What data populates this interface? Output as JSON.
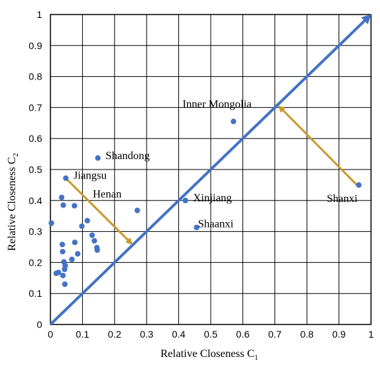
{
  "chart_data": {
    "type": "scatter",
    "title": "",
    "xlabel": "Relative Closeness C",
    "xlabel_sub": "1",
    "ylabel": "Relative Closeness C",
    "ylabel_sub": "2",
    "xlim": [
      0,
      1
    ],
    "ylim": [
      0,
      1
    ],
    "xticks": [
      "0",
      "0.1",
      "0.2",
      "0.3",
      "0.4",
      "0.5",
      "0.6",
      "0.7",
      "0.8",
      "0.9",
      "1"
    ],
    "yticks": [
      "0",
      "0.1",
      "0.2",
      "0.3",
      "0.4",
      "0.5",
      "0.6",
      "0.7",
      "0.8",
      "0.9",
      "1"
    ],
    "grid": true,
    "point_color": "#4472C4",
    "diagonal_color": "#4472C4",
    "arrow_color": "#C99A2E",
    "points": [
      {
        "x": 0.003,
        "y": 0.327
      },
      {
        "x": 0.018,
        "y": 0.165
      },
      {
        "x": 0.025,
        "y": 0.168
      },
      {
        "x": 0.035,
        "y": 0.41
      },
      {
        "x": 0.037,
        "y": 0.258
      },
      {
        "x": 0.038,
        "y": 0.235
      },
      {
        "x": 0.039,
        "y": 0.158
      },
      {
        "x": 0.04,
        "y": 0.385
      },
      {
        "x": 0.042,
        "y": 0.202
      },
      {
        "x": 0.044,
        "y": 0.178
      },
      {
        "x": 0.046,
        "y": 0.19
      },
      {
        "x": 0.045,
        "y": 0.13
      },
      {
        "x": 0.048,
        "y": 0.472
      },
      {
        "x": 0.067,
        "y": 0.21
      },
      {
        "x": 0.075,
        "y": 0.383
      },
      {
        "x": 0.076,
        "y": 0.265
      },
      {
        "x": 0.085,
        "y": 0.228
      },
      {
        "x": 0.098,
        "y": 0.317
      },
      {
        "x": 0.115,
        "y": 0.335
      },
      {
        "x": 0.13,
        "y": 0.288
      },
      {
        "x": 0.137,
        "y": 0.27
      },
      {
        "x": 0.145,
        "y": 0.248
      },
      {
        "x": 0.146,
        "y": 0.24
      },
      {
        "x": 0.148,
        "y": 0.537
      },
      {
        "x": 0.271,
        "y": 0.368
      },
      {
        "x": 0.421,
        "y": 0.4
      },
      {
        "x": 0.456,
        "y": 0.313
      },
      {
        "x": 0.571,
        "y": 0.655
      },
      {
        "x": 0.962,
        "y": 0.45
      }
    ],
    "annotations": [
      {
        "text": "Inner Mongolia",
        "x": 0.412,
        "y": 0.7
      },
      {
        "text": "Shandong",
        "x": 0.172,
        "y": 0.534
      },
      {
        "text": "Jiangsu",
        "x": 0.072,
        "y": 0.47
      },
      {
        "text": "Henan",
        "x": 0.132,
        "y": 0.41
      },
      {
        "text": "Xinjiang",
        "x": 0.445,
        "y": 0.397
      },
      {
        "text": "Shaanxi",
        "x": 0.46,
        "y": 0.314
      },
      {
        "text": "Shanxi",
        "x": 0.862,
        "y": 0.395
      }
    ],
    "arrows": [
      {
        "from": [
          0.048,
          0.472
        ],
        "to": [
          0.252,
          0.262
        ],
        "color": "#C99A2E"
      },
      {
        "from": [
          0.958,
          0.448
        ],
        "to": [
          0.715,
          0.702
        ],
        "color": "#C99A2E"
      },
      {
        "from": [
          0.0,
          0.0
        ],
        "to": [
          0.995,
          0.995
        ],
        "color": "#4472C4"
      }
    ]
  }
}
